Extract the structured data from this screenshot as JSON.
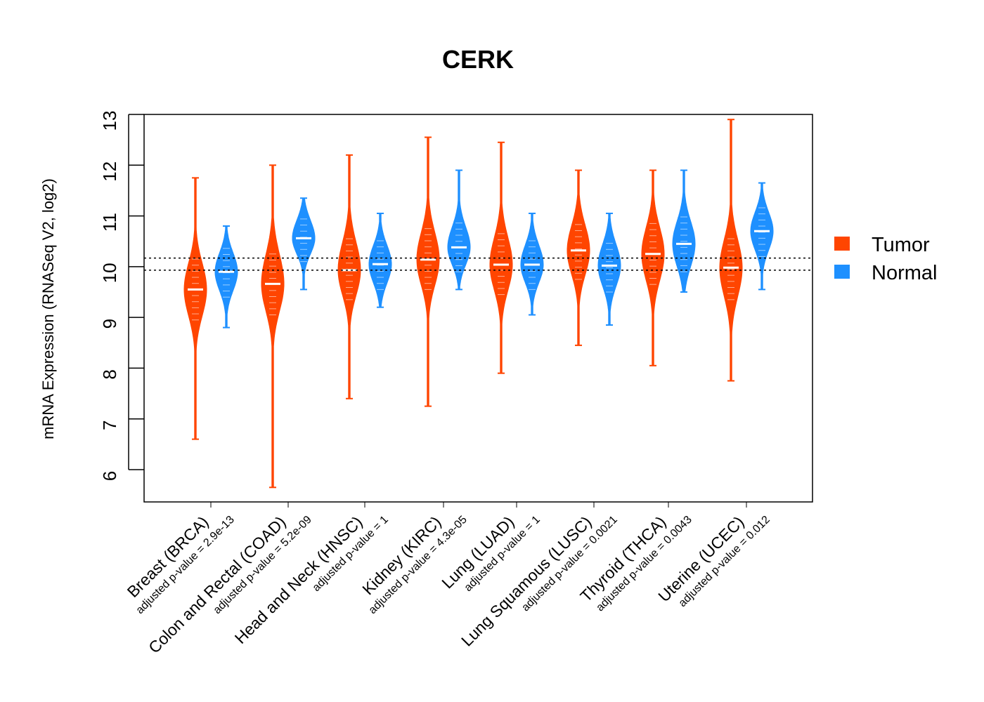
{
  "chart_data": {
    "type": "violin",
    "title": "CERK",
    "xlabel": "",
    "ylabel": "mRNA Expression (RNASeq V2, log2)",
    "ylim": [
      5.35,
      13
    ],
    "yticks": [
      6,
      7,
      8,
      9,
      10,
      11,
      12,
      13
    ],
    "reference_lines": [
      9.93,
      10.17
    ],
    "legend": {
      "position": "right",
      "entries": [
        "Tumor",
        "Normal"
      ]
    },
    "colors": {
      "Tumor": "#ff4500",
      "Normal": "#1e90ff"
    },
    "categories": [
      "Breast (BRCA)",
      "Colon and Rectal (COAD)",
      "Head and Neck (HNSC)",
      "Kidney (KIRC)",
      "Lung (LUAD)",
      "Lung Squamous (LUSC)",
      "Thyroid (THCA)",
      "Uterine (UCEC)"
    ],
    "pvalue_labels": [
      "adjusted p-value = 2.9e-13",
      "adjusted p-value = 5.2e-09",
      "adjusted p-value = 1",
      "adjusted p-value = 4.3e-05",
      "adjusted p-value = 1",
      "adjusted p-value = 0.0021",
      "adjusted p-value = 0.0043",
      "adjusted p-value = 0.012"
    ],
    "series": [
      {
        "name": "Tumor",
        "median": [
          9.55,
          9.66,
          9.93,
          10.14,
          10.04,
          10.32,
          10.25,
          9.98
        ],
        "min": [
          6.6,
          5.65,
          7.4,
          7.25,
          7.9,
          8.45,
          8.05,
          7.75
        ],
        "max": [
          11.75,
          12.0,
          12.2,
          12.55,
          12.45,
          11.9,
          11.9,
          12.9
        ],
        "q1": [
          9.2,
          9.3,
          9.6,
          9.8,
          9.7,
          10.0,
          9.9,
          9.6
        ],
        "q3": [
          9.9,
          10.05,
          10.3,
          10.5,
          10.4,
          10.65,
          10.6,
          10.35
        ]
      },
      {
        "name": "Normal",
        "median": [
          9.9,
          10.56,
          10.05,
          10.38,
          10.04,
          10.02,
          10.45,
          10.7
        ],
        "min": [
          8.8,
          9.55,
          9.2,
          9.55,
          9.05,
          8.85,
          9.5,
          9.55
        ],
        "max": [
          10.8,
          11.35,
          11.05,
          11.9,
          11.05,
          11.05,
          11.9,
          11.65
        ],
        "q1": [
          9.65,
          10.35,
          9.8,
          10.15,
          9.8,
          9.75,
          10.15,
          10.45
        ],
        "q3": [
          10.15,
          10.8,
          10.3,
          10.65,
          10.3,
          10.3,
          10.75,
          10.95
        ]
      }
    ]
  }
}
